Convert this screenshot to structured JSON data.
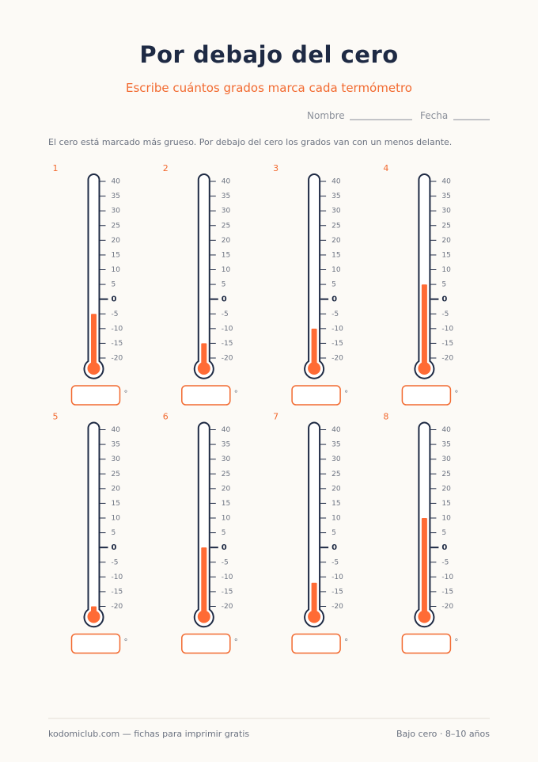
{
  "header": {
    "title": "Por debajo del cero",
    "subtitle": "Escribe cuántos grados marca cada termómetro",
    "name_label": "Nombre",
    "date_label": "Fecha"
  },
  "instructions": "El cero está marcado más grueso. Por debajo del cero los grados van con un menos delante.",
  "scale": {
    "ylim": [
      -20,
      40
    ],
    "ticks": [
      40,
      35,
      30,
      25,
      20,
      15,
      10,
      5,
      0,
      -5,
      -10,
      -15,
      -20
    ],
    "unit": "°"
  },
  "thermometers": [
    {
      "label": "1",
      "value": -5
    },
    {
      "label": "2",
      "value": -15
    },
    {
      "label": "3",
      "value": -10
    },
    {
      "label": "4",
      "value": 5
    },
    {
      "label": "5",
      "value": -20
    },
    {
      "label": "6",
      "value": 0
    },
    {
      "label": "7",
      "value": -12
    },
    {
      "label": "8",
      "value": 10
    }
  ],
  "footer": {
    "left": "kodomiclub.com — fichas para imprimir gratis",
    "right": "Bajo cero · 8–10 años"
  }
}
